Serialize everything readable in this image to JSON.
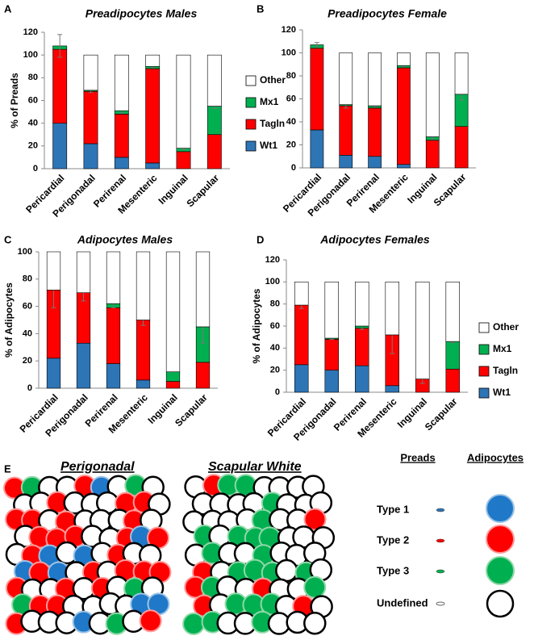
{
  "chart_data": [
    {
      "panel": "A",
      "type": "bar",
      "stacked": true,
      "title": "Preadipocytes Males",
      "ylabel": "% of Preads",
      "categories": [
        "Pericardial",
        "Perigonadal",
        "Perirenal",
        "Mesenteric",
        "Inguinal",
        "Scapular"
      ],
      "series": [
        {
          "name": "Wt1",
          "color": "#2e75b6",
          "values": [
            40,
            22,
            10,
            5,
            0,
            0
          ]
        },
        {
          "name": "Tagln",
          "color": "#ff0000",
          "values": [
            65,
            46,
            38,
            83,
            15,
            30
          ]
        },
        {
          "name": "Mx1",
          "color": "#00b050",
          "values": [
            3,
            1,
            3,
            2,
            3,
            25
          ],
          "errors": [
            10,
            2,
            2,
            1,
            1,
            2
          ]
        },
        {
          "name": "Other",
          "color": "#ffffff",
          "values": [
            0,
            31,
            49,
            10,
            82,
            45
          ]
        }
      ],
      "ylim": [
        0,
        120
      ],
      "yticks": [
        0,
        20,
        40,
        60,
        80,
        100,
        120
      ],
      "legend": true
    },
    {
      "panel": "B",
      "type": "bar",
      "stacked": true,
      "title": "Preadipocytes Female",
      "ylabel": null,
      "categories": [
        "Pericardial",
        "Perigonadal",
        "Perirenal",
        "Mesenteric",
        "Inguinal",
        "Scapular"
      ],
      "series": [
        {
          "name": "Wt1",
          "color": "#2e75b6",
          "values": [
            33,
            11,
            10,
            3,
            0,
            0
          ]
        },
        {
          "name": "Tagln",
          "color": "#ff0000",
          "values": [
            71,
            43,
            42,
            84,
            24,
            36
          ]
        },
        {
          "name": "Mx1",
          "color": "#00b050",
          "values": [
            3,
            1,
            2,
            2,
            3,
            28
          ],
          "errors": [
            2,
            3,
            1,
            1,
            2,
            5
          ]
        },
        {
          "name": "Other",
          "color": "#ffffff",
          "values": [
            0,
            45,
            46,
            11,
            73,
            36
          ]
        }
      ],
      "ylim": [
        0,
        120
      ],
      "yticks": [
        0,
        20,
        40,
        60,
        80,
        100,
        120
      ],
      "legend": false
    },
    {
      "panel": "C",
      "type": "bar",
      "stacked": true,
      "title": "Adipocytes Males",
      "ylabel": "% of Adipocytes",
      "categories": [
        "Pericardial",
        "Perigonadal",
        "Perirenal",
        "Mesenteric",
        "Inguinal",
        "Scapular"
      ],
      "series": [
        {
          "name": "Wt1",
          "color": "#2e75b6",
          "values": [
            22,
            33,
            18,
            6,
            0,
            0
          ]
        },
        {
          "name": "Tagln",
          "color": "#ff0000",
          "values": [
            50,
            37,
            41,
            44,
            5,
            19
          ]
        },
        {
          "name": "Mx1",
          "color": "#00b050",
          "values": [
            0,
            0,
            3,
            0,
            7,
            26
          ],
          "errors": [
            13,
            6,
            3,
            4,
            0,
            12
          ]
        },
        {
          "name": "Other",
          "color": "#ffffff",
          "values": [
            28,
            30,
            38,
            50,
            88,
            55
          ]
        }
      ],
      "ylim": [
        0,
        100
      ],
      "yticks": [
        0,
        20,
        40,
        60,
        80,
        100
      ],
      "legend": false
    },
    {
      "panel": "D",
      "type": "bar",
      "stacked": true,
      "title": "Adipocytes Females",
      "ylabel": "% of Adipocytes",
      "categories": [
        "Pericardial",
        "Perigonadal",
        "Perirenal",
        "Mesenteric",
        "Inguinal",
        "Scapular"
      ],
      "series": [
        {
          "name": "Wt1",
          "color": "#2e75b6",
          "values": [
            25,
            20,
            24,
            6,
            0,
            0
          ]
        },
        {
          "name": "Tagln",
          "color": "#ff0000",
          "values": [
            54,
            28,
            34,
            46,
            12,
            21
          ]
        },
        {
          "name": "Mx1",
          "color": "#00b050",
          "values": [
            0,
            1,
            2,
            0,
            0,
            25
          ],
          "errors": [
            3,
            1,
            3,
            17,
            4,
            1
          ]
        },
        {
          "name": "Other",
          "color": "#ffffff",
          "values": [
            21,
            51,
            40,
            48,
            88,
            54
          ]
        }
      ],
      "ylim": [
        0,
        120
      ],
      "yticks": [
        0,
        20,
        40,
        60,
        80,
        100,
        120
      ],
      "legend": true
    }
  ],
  "panel_e": {
    "panel": "E",
    "groups": [
      {
        "title": "Perigonadal"
      },
      {
        "title": "Scapular White"
      }
    ],
    "legend": {
      "columns": [
        "Preads",
        "Adipocytes"
      ],
      "rows": [
        "Type 1",
        "Type 2",
        "Type 3",
        "Undefined"
      ]
    }
  }
}
